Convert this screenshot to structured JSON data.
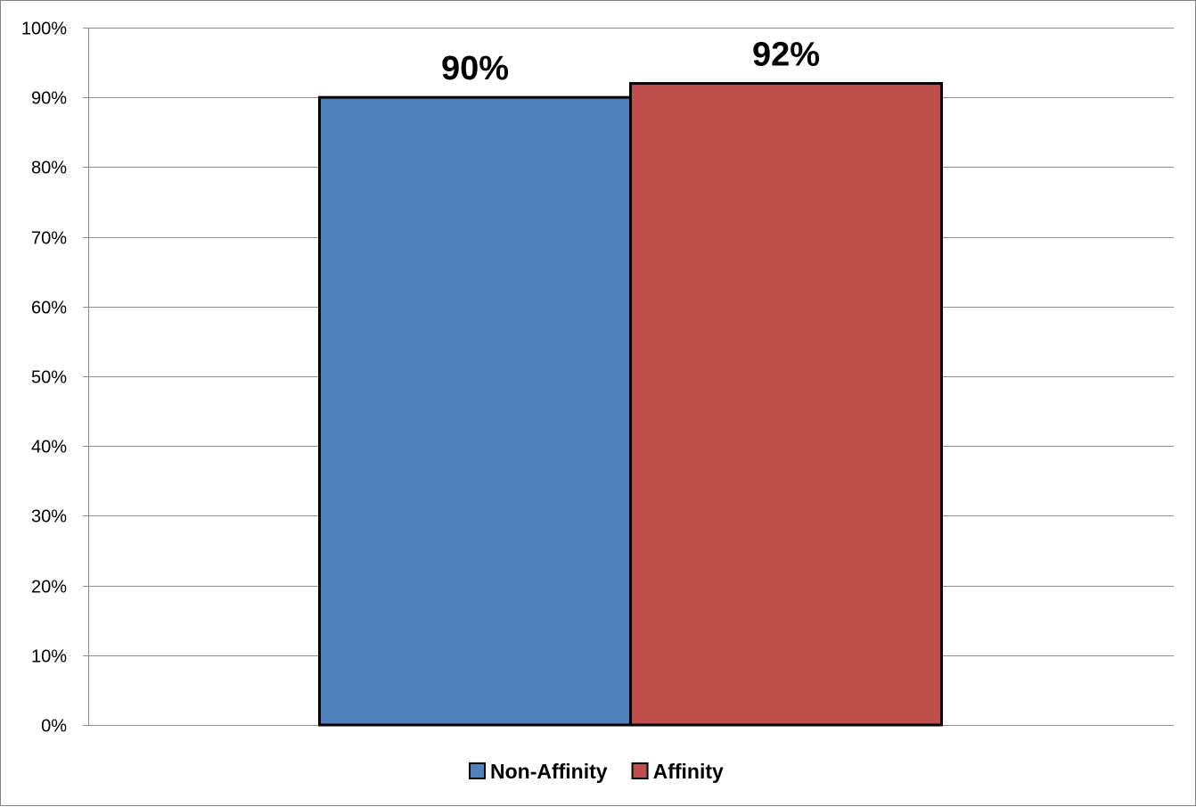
{
  "chart_data": {
    "type": "bar",
    "categories": [
      ""
    ],
    "series": [
      {
        "name": "Non-Affinity",
        "values": [
          0.9
        ],
        "color": "#4F81BD"
      },
      {
        "name": "Affinity",
        "values": [
          0.92
        ],
        "color": "#C0504D"
      }
    ],
    "data_labels": [
      "90%",
      "92%"
    ],
    "title": "",
    "xlabel": "",
    "ylabel": "",
    "ylim": [
      0,
      1
    ],
    "yticks": [
      {
        "value": 0,
        "label": "0%"
      },
      {
        "value": 0.1,
        "label": "10%"
      },
      {
        "value": 0.2,
        "label": "20%"
      },
      {
        "value": 0.3,
        "label": "30%"
      },
      {
        "value": 0.4,
        "label": "40%"
      },
      {
        "value": 0.5,
        "label": "50%"
      },
      {
        "value": 0.6,
        "label": "60%"
      },
      {
        "value": 0.7,
        "label": "70%"
      },
      {
        "value": 0.8,
        "label": "80%"
      },
      {
        "value": 0.9,
        "label": "90%"
      },
      {
        "value": 1,
        "label": "100%"
      }
    ],
    "grid": true,
    "legend_position": "bottom"
  }
}
